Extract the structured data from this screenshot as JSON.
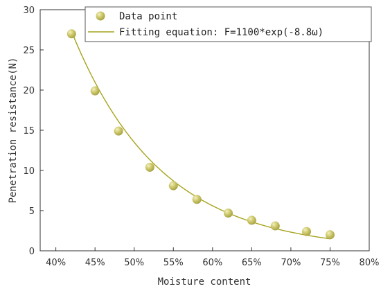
{
  "chart_data": {
    "type": "scatter",
    "xlabel": "Moisture content",
    "ylabel": "Penetration resistance(N)",
    "x_ticks": [
      "40%",
      "45%",
      "50%",
      "55%",
      "60%",
      "65%",
      "70%",
      "75%",
      "80%"
    ],
    "y_ticks": [
      "0",
      "5",
      "10",
      "15",
      "20",
      "25",
      "30"
    ],
    "xlim": [
      0.38,
      0.8
    ],
    "ylim": [
      0,
      30
    ],
    "grid": false,
    "legend_position": "top-right",
    "series": [
      {
        "name": "Data point",
        "kind": "scatter",
        "color": "#c9c35a",
        "x": [
          0.42,
          0.45,
          0.48,
          0.52,
          0.55,
          0.58,
          0.62,
          0.65,
          0.68,
          0.72,
          0.75
        ],
        "y": [
          27.0,
          19.9,
          14.9,
          10.4,
          8.1,
          6.4,
          4.7,
          3.8,
          3.1,
          2.4,
          2.0
        ]
      },
      {
        "name": "Fitting equation: F=1100*exp(-8.8ω)",
        "kind": "line",
        "color": "#a6a31b",
        "equation": "F=1100*exp(-8.8*ω)",
        "x_range": [
          0.42,
          0.75
        ],
        "x": [
          0.42,
          0.45,
          0.48,
          0.51,
          0.54,
          0.57,
          0.6,
          0.63,
          0.66,
          0.69,
          0.72,
          0.75
        ],
        "y": [
          27.3,
          20.9,
          15.9,
          12.2,
          9.3,
          7.1,
          5.6,
          4.3,
          3.3,
          2.5,
          1.9,
          1.5
        ]
      }
    ]
  }
}
